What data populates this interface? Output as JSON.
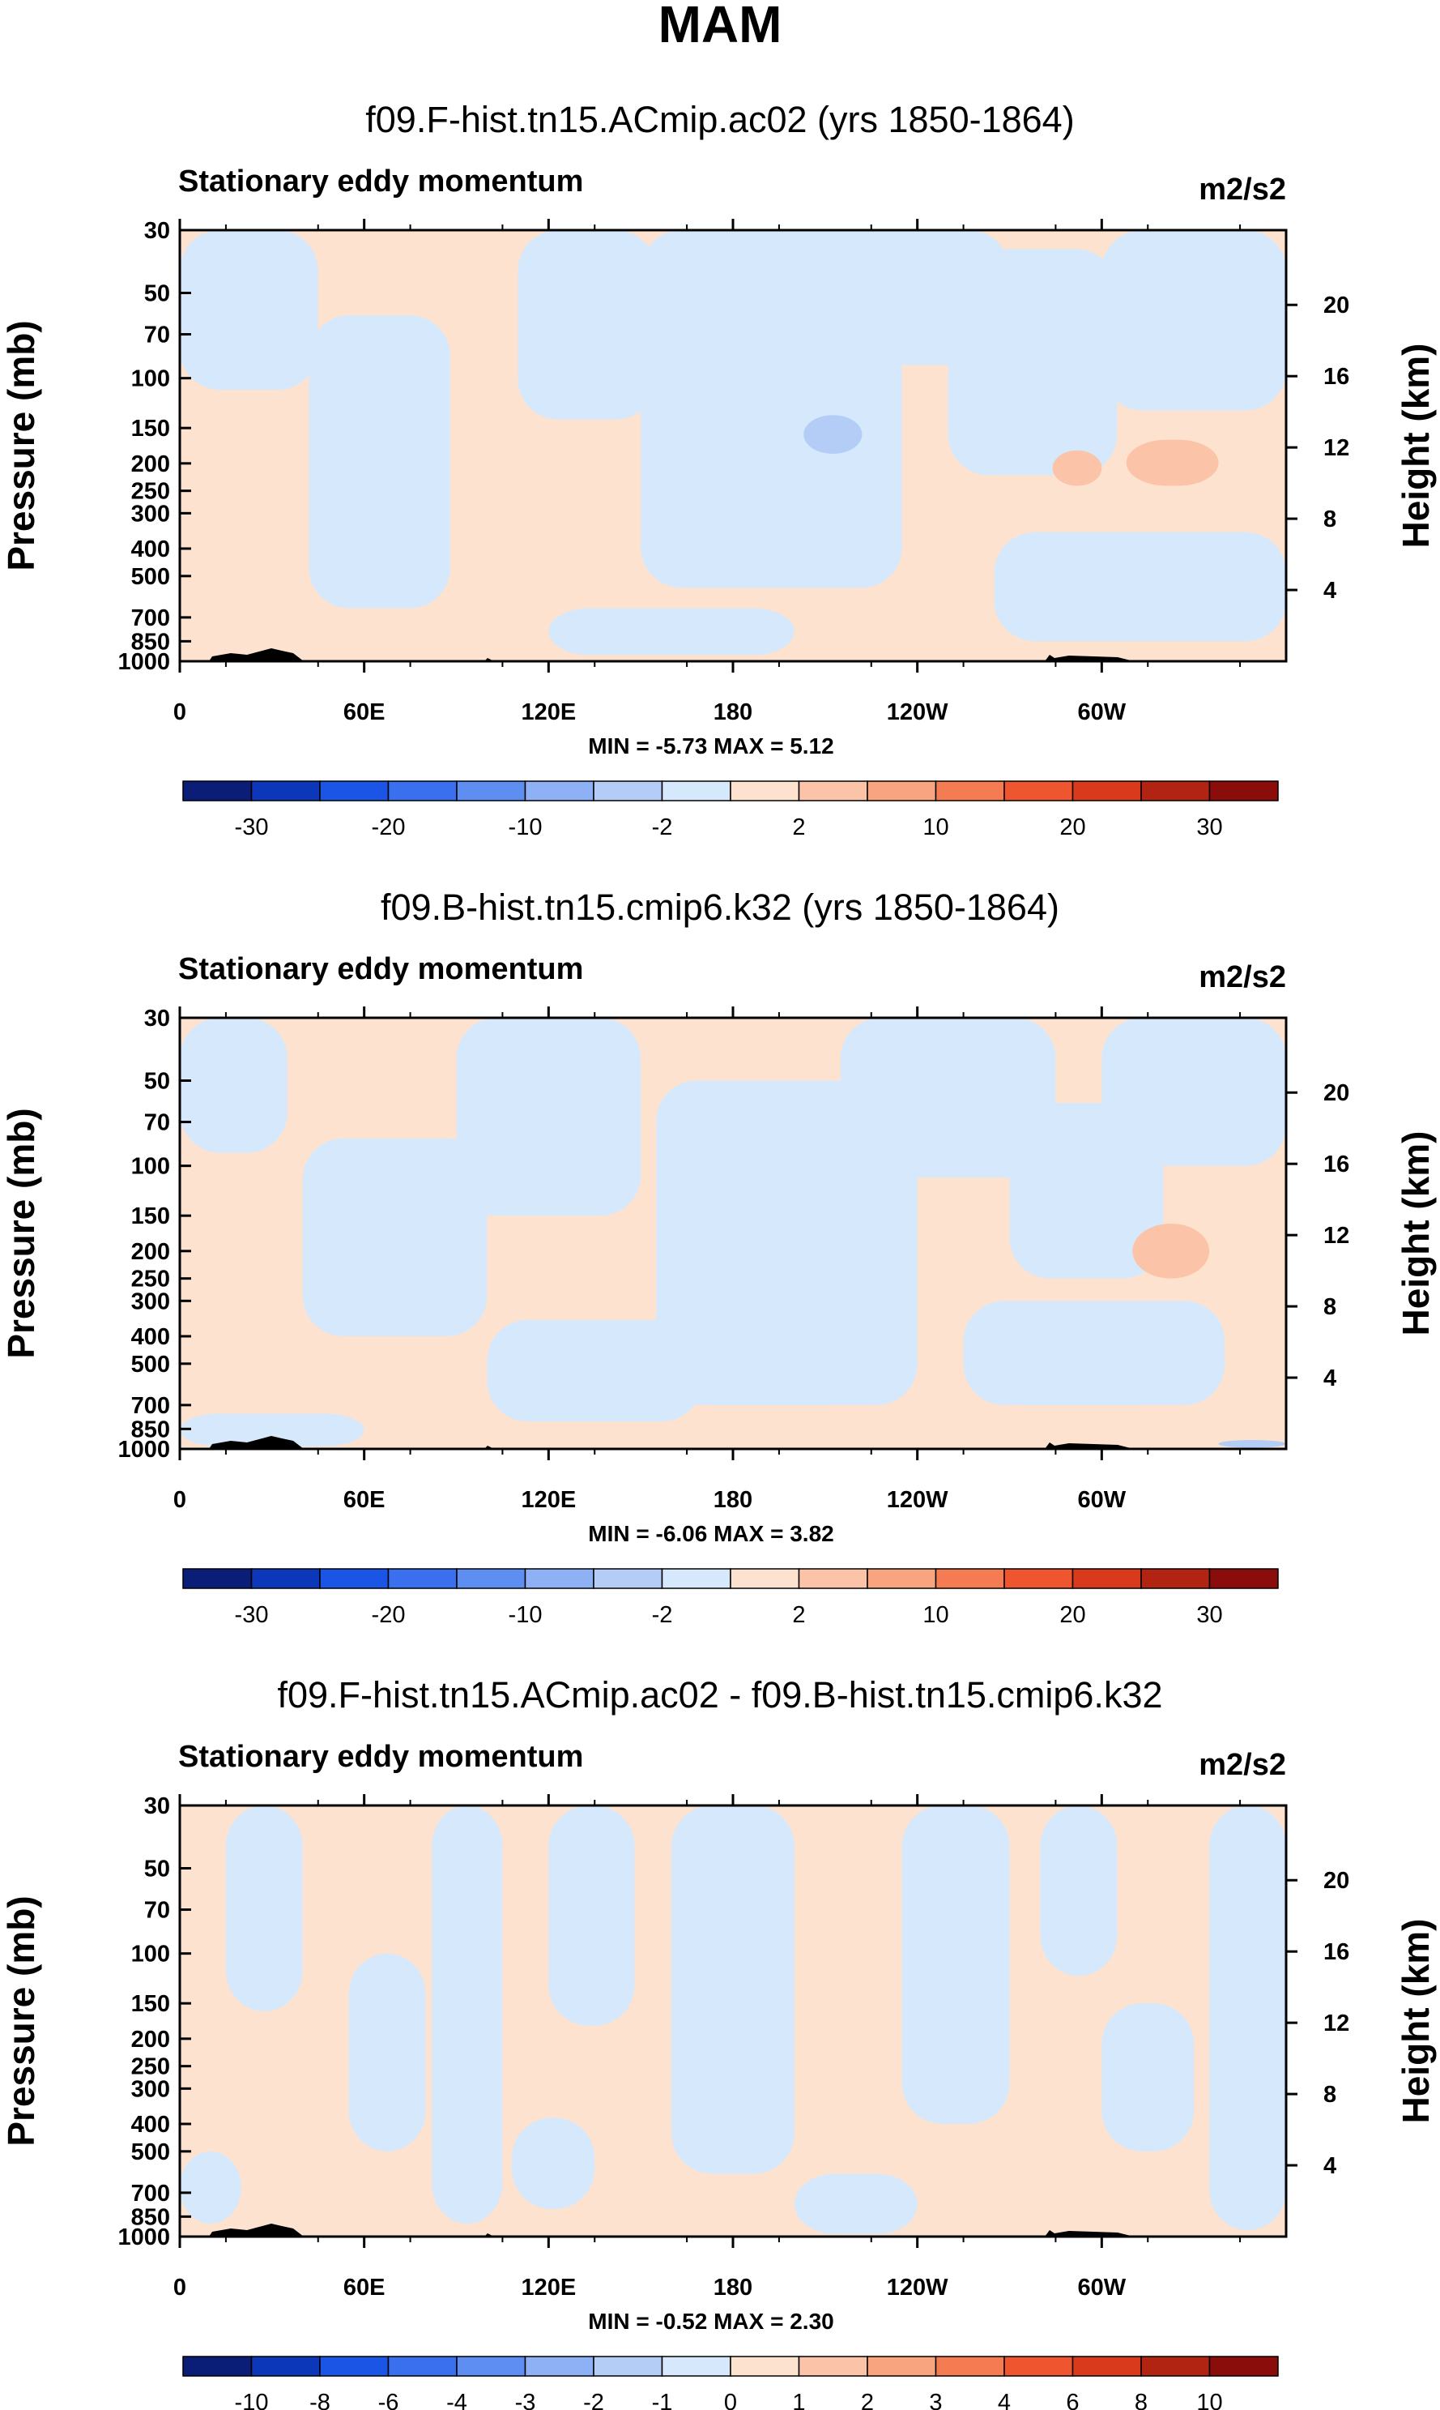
{
  "figure": {
    "title": "MAM"
  },
  "colors": {
    "neg_light": "#d6e8fb",
    "neg_mid": "#b3cdf6",
    "pos_light": "#fde3cf",
    "pos_mid": "#fbc4a8",
    "terrain": "#000000"
  },
  "chart_data": [
    {
      "type": "heatmap",
      "title": "f09.F-hist.tn15.ACmip.ac02 (yrs 1850-1864)",
      "subtitle": "Stationary eddy momentum",
      "units": "m2/s2",
      "ylabel": "Pressure (mb)",
      "y2label": "Height (km)",
      "x_ticks": [
        "0",
        "60E",
        "120E",
        "180",
        "120W",
        "60W"
      ],
      "x_range_deg": [
        0,
        360
      ],
      "y_ticks": [
        "30",
        "50",
        "70",
        "100",
        "150",
        "200",
        "250",
        "300",
        "400",
        "500",
        "700",
        "850",
        "1000"
      ],
      "y_range_mb": [
        30,
        1000
      ],
      "y2_ticks": [
        "20",
        "16",
        "12",
        "8",
        "4"
      ],
      "stats": "MIN =  -5.73   MAX =   5.12",
      "colorbar_labels": [
        "-30",
        "-20",
        "-10",
        "-2",
        "2",
        "10",
        "20",
        "30"
      ],
      "colorbar_colors": [
        "#0a1e78",
        "#0d37b9",
        "#1a55e6",
        "#3a70ee",
        "#5e8ef2",
        "#8eb0f5",
        "#b3cdf6",
        "#d6e8fb",
        "#fde3cf",
        "#fbc4a8",
        "#f8a47f",
        "#f57c52",
        "#ef552e",
        "#d93a1b",
        "#b22412",
        "#8a0d0b"
      ],
      "regions": [
        {
          "sign": "neg",
          "lon_deg": [
            0,
            45
          ],
          "p_mb": [
            30,
            110
          ]
        },
        {
          "sign": "neg",
          "lon_deg": [
            42,
            88
          ],
          "p_mb": [
            60,
            650
          ]
        },
        {
          "sign": "neg",
          "lon_deg": [
            110,
            155
          ],
          "p_mb": [
            30,
            140
          ]
        },
        {
          "sign": "neg",
          "lon_deg": [
            150,
            235
          ],
          "p_mb": [
            30,
            550
          ]
        },
        {
          "sign": "neg",
          "lon_deg": [
            210,
            270
          ],
          "p_mb": [
            30,
            90
          ]
        },
        {
          "sign": "neg",
          "lon_deg": [
            250,
            305
          ],
          "p_mb": [
            35,
            220
          ]
        },
        {
          "sign": "neg",
          "lon_deg": [
            300,
            360
          ],
          "p_mb": [
            30,
            130
          ]
        },
        {
          "sign": "neg",
          "lon_deg": [
            265,
            360
          ],
          "p_mb": [
            350,
            850
          ]
        },
        {
          "sign": "neg",
          "lon_deg": [
            120,
            200
          ],
          "p_mb": [
            650,
            950
          ]
        },
        {
          "sign": "neg_mid",
          "lon_deg": [
            203,
            222
          ],
          "p_mb": [
            135,
            185
          ]
        },
        {
          "sign": "pos_mid",
          "lon_deg": [
            284,
            300
          ],
          "p_mb": [
            180,
            240
          ]
        },
        {
          "sign": "pos_mid",
          "lon_deg": [
            308,
            338
          ],
          "p_mb": [
            165,
            240
          ]
        }
      ]
    },
    {
      "type": "heatmap",
      "title": "f09.B-hist.tn15.cmip6.k32 (yrs 1850-1864)",
      "subtitle": "Stationary eddy momentum",
      "units": "m2/s2",
      "ylabel": "Pressure (mb)",
      "y2label": "Height (km)",
      "x_ticks": [
        "0",
        "60E",
        "120E",
        "180",
        "120W",
        "60W"
      ],
      "x_range_deg": [
        0,
        360
      ],
      "y_ticks": [
        "30",
        "50",
        "70",
        "100",
        "150",
        "200",
        "250",
        "300",
        "400",
        "500",
        "700",
        "850",
        "1000"
      ],
      "y_range_mb": [
        30,
        1000
      ],
      "y2_ticks": [
        "20",
        "16",
        "12",
        "8",
        "4"
      ],
      "stats": "MIN =  -6.06   MAX =   3.82",
      "colorbar_labels": [
        "-30",
        "-20",
        "-10",
        "-2",
        "2",
        "10",
        "20",
        "30"
      ],
      "colorbar_colors": [
        "#0a1e78",
        "#0d37b9",
        "#1a55e6",
        "#3a70ee",
        "#5e8ef2",
        "#8eb0f5",
        "#b3cdf6",
        "#d6e8fb",
        "#fde3cf",
        "#fbc4a8",
        "#f8a47f",
        "#f57c52",
        "#ef552e",
        "#d93a1b",
        "#b22412",
        "#8a0d0b"
      ],
      "regions": [
        {
          "sign": "neg",
          "lon_deg": [
            0,
            35
          ],
          "p_mb": [
            30,
            90
          ]
        },
        {
          "sign": "neg",
          "lon_deg": [
            40,
            100
          ],
          "p_mb": [
            80,
            400
          ]
        },
        {
          "sign": "neg",
          "lon_deg": [
            90,
            150
          ],
          "p_mb": [
            30,
            150
          ]
        },
        {
          "sign": "neg",
          "lon_deg": [
            100,
            170
          ],
          "p_mb": [
            350,
            800
          ]
        },
        {
          "sign": "neg",
          "lon_deg": [
            155,
            240
          ],
          "p_mb": [
            50,
            700
          ]
        },
        {
          "sign": "neg",
          "lon_deg": [
            215,
            285
          ],
          "p_mb": [
            30,
            110
          ]
        },
        {
          "sign": "neg",
          "lon_deg": [
            270,
            320
          ],
          "p_mb": [
            60,
            250
          ]
        },
        {
          "sign": "neg",
          "lon_deg": [
            300,
            360
          ],
          "p_mb": [
            30,
            100
          ]
        },
        {
          "sign": "neg",
          "lon_deg": [
            255,
            340
          ],
          "p_mb": [
            300,
            700
          ]
        },
        {
          "sign": "neg",
          "lon_deg": [
            0,
            60
          ],
          "p_mb": [
            750,
            980
          ]
        },
        {
          "sign": "pos_mid",
          "lon_deg": [
            310,
            335
          ],
          "p_mb": [
            160,
            250
          ]
        },
        {
          "sign": "neg_mid",
          "lon_deg": [
            338,
            360
          ],
          "p_mb": [
            930,
            990
          ]
        }
      ]
    },
    {
      "type": "heatmap",
      "title": "f09.F-hist.tn15.ACmip.ac02 - f09.B-hist.tn15.cmip6.k32",
      "subtitle": "Stationary eddy momentum",
      "units": "m2/s2",
      "ylabel": "Pressure (mb)",
      "y2label": "Height (km)",
      "x_ticks": [
        "0",
        "60E",
        "120E",
        "180",
        "120W",
        "60W"
      ],
      "x_range_deg": [
        0,
        360
      ],
      "y_ticks": [
        "30",
        "50",
        "70",
        "100",
        "150",
        "200",
        "250",
        "300",
        "400",
        "500",
        "700",
        "850",
        "1000"
      ],
      "y_range_mb": [
        30,
        1000
      ],
      "y2_ticks": [
        "20",
        "16",
        "12",
        "8",
        "4"
      ],
      "stats": "MIN =  -0.52   MAX =   2.30",
      "colorbar_labels": [
        "-10",
        "-8",
        "-6",
        "-4",
        "-3",
        "-2",
        "-1",
        "0",
        "1",
        "2",
        "3",
        "4",
        "6",
        "8",
        "10"
      ],
      "colorbar_colors": [
        "#0a1e78",
        "#0d37b9",
        "#1a55e6",
        "#3a70ee",
        "#5e8ef2",
        "#8eb0f5",
        "#b3cdf6",
        "#d6e8fb",
        "#fde3cf",
        "#fbc4a8",
        "#f8a47f",
        "#f57c52",
        "#ef552e",
        "#d93a1b",
        "#b22412",
        "#8a0d0b"
      ],
      "regions": [
        {
          "sign": "neg",
          "lon_deg": [
            15,
            40
          ],
          "p_mb": [
            30,
            160
          ]
        },
        {
          "sign": "neg",
          "lon_deg": [
            55,
            80
          ],
          "p_mb": [
            100,
            500
          ]
        },
        {
          "sign": "neg",
          "lon_deg": [
            82,
            105
          ],
          "p_mb": [
            30,
            900
          ]
        },
        {
          "sign": "neg",
          "lon_deg": [
            120,
            148
          ],
          "p_mb": [
            30,
            180
          ]
        },
        {
          "sign": "neg",
          "lon_deg": [
            108,
            135
          ],
          "p_mb": [
            380,
            800
          ]
        },
        {
          "sign": "neg",
          "lon_deg": [
            160,
            200
          ],
          "p_mb": [
            30,
            600
          ]
        },
        {
          "sign": "neg",
          "lon_deg": [
            200,
            240
          ],
          "p_mb": [
            600,
            980
          ]
        },
        {
          "sign": "neg",
          "lon_deg": [
            235,
            270
          ],
          "p_mb": [
            30,
            400
          ]
        },
        {
          "sign": "neg",
          "lon_deg": [
            280,
            305
          ],
          "p_mb": [
            30,
            120
          ]
        },
        {
          "sign": "neg",
          "lon_deg": [
            300,
            330
          ],
          "p_mb": [
            150,
            500
          ]
        },
        {
          "sign": "neg",
          "lon_deg": [
            335,
            360
          ],
          "p_mb": [
            30,
            950
          ]
        },
        {
          "sign": "neg",
          "lon_deg": [
            0,
            20
          ],
          "p_mb": [
            500,
            900
          ]
        }
      ]
    }
  ]
}
